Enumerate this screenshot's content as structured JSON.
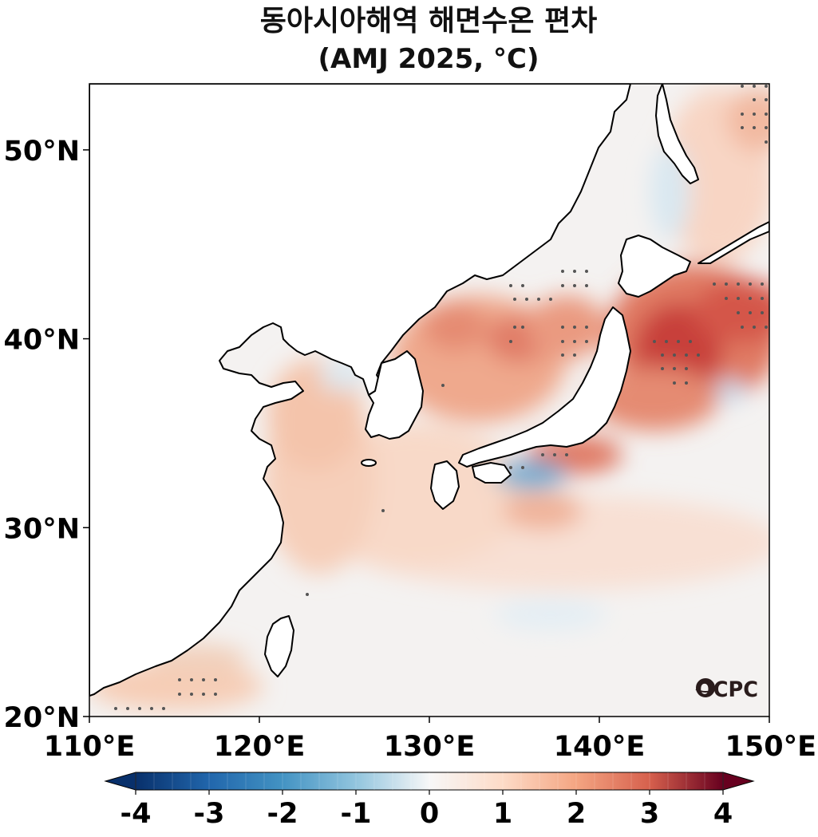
{
  "title": {
    "line1": "동아시아해역 해면수온 편차",
    "line2": "(AMJ 2025, °C)"
  },
  "map": {
    "lon_range": [
      110,
      150
    ],
    "lat_range": [
      20,
      53.5
    ],
    "lat_ticks": [
      {
        "value": 20,
        "label": "20°N"
      },
      {
        "value": 30,
        "label": "30°N"
      },
      {
        "value": 40,
        "label": "40°N"
      },
      {
        "value": 50,
        "label": "50°N"
      }
    ],
    "lon_ticks": [
      {
        "value": 110,
        "label": "110°E"
      },
      {
        "value": 120,
        "label": "120°E"
      },
      {
        "value": 130,
        "label": "130°E"
      },
      {
        "value": 140,
        "label": "140°E"
      },
      {
        "value": 150,
        "label": "150°E"
      }
    ],
    "logo": "OCPC"
  },
  "colorbar": {
    "min": -4,
    "max": 4,
    "ticks": [
      {
        "value": -4,
        "label": "-4"
      },
      {
        "value": -3,
        "label": "-3"
      },
      {
        "value": -2,
        "label": "-2"
      },
      {
        "value": -1,
        "label": "-1"
      },
      {
        "value": 0,
        "label": "0"
      },
      {
        "value": 1,
        "label": "1"
      },
      {
        "value": 2,
        "label": "2"
      },
      {
        "value": 3,
        "label": "3"
      },
      {
        "value": 4,
        "label": "4"
      }
    ],
    "colors": {
      "neg4": "#08306b",
      "neg3": "#2166ac",
      "neg2": "#4393c3",
      "neg1": "#92c5de",
      "zero": "#f7f7f7",
      "pos1": "#fddbc7",
      "pos2": "#f4a582",
      "pos3": "#d6604d",
      "pos4": "#67001f"
    }
  },
  "colors": {
    "ocean_base": "#f4f2f1",
    "warm_light": "#f8d9c8",
    "warm_mid": "#efa98d",
    "warm_strong": "#cc4a3e",
    "cool_light": "#d9e8f1",
    "cool_mid": "#8fbfdb",
    "land": "#ffffff",
    "stipple": "#555555"
  }
}
